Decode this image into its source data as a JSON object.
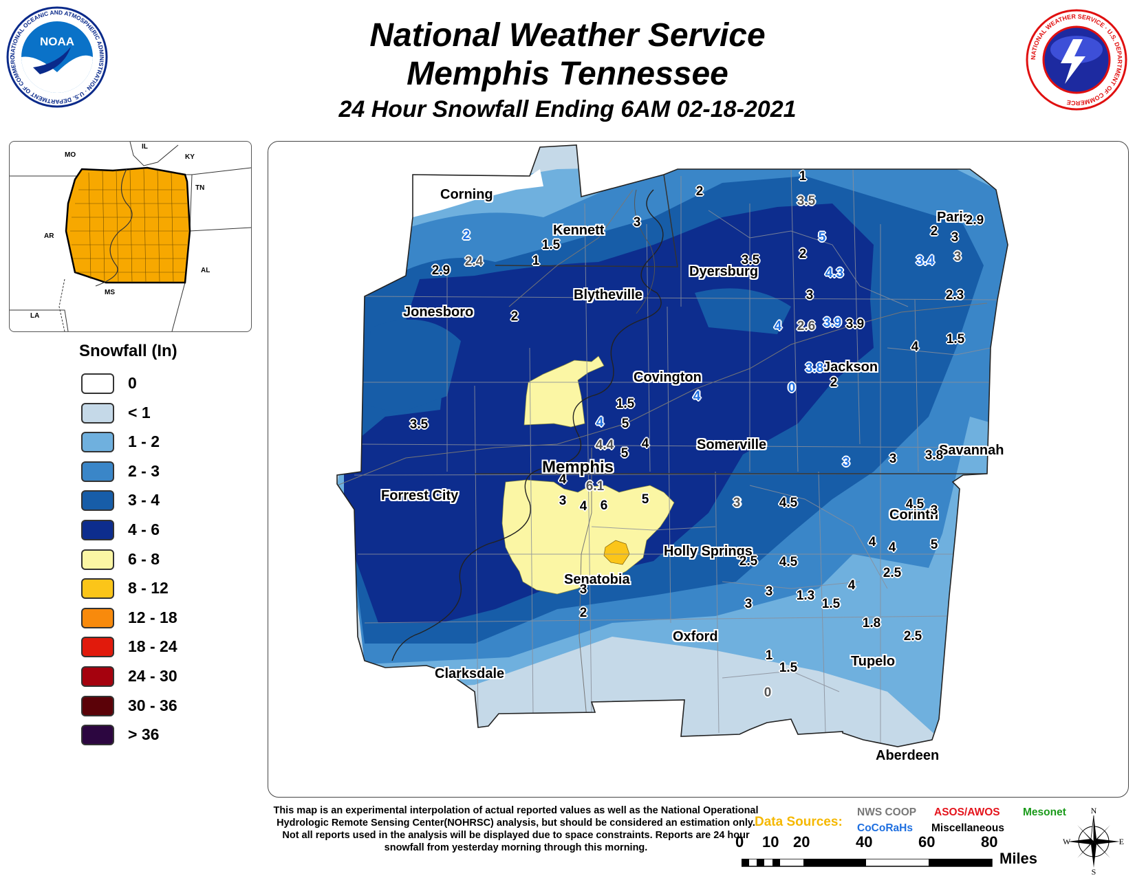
{
  "header": {
    "title_line1": "National Weather Service",
    "title_line2": "Memphis Tennessee",
    "subtitle": "24 Hour Snowfall Ending 6AM 02-18-2021"
  },
  "logos": {
    "noaa_text": "NOAA",
    "noaa_ring": "NATIONAL OCEANIC AND ATMOSPHERIC ADMINISTRATION · U.S. DEPARTMENT OF COMMERCE",
    "nws_ring": "NATIONAL WEATHER SERVICE · U.S. DEPARTMENT OF COMMERCE"
  },
  "inset": {
    "state_labels": [
      "MO",
      "IL",
      "KY",
      "TN",
      "AR",
      "AL",
      "MS",
      "LA"
    ],
    "fill_color": "#f7a800"
  },
  "legend": {
    "title": "Snowfall (In)",
    "items": [
      {
        "label": "0",
        "color": "#ffffff"
      },
      {
        "label": "< 1",
        "color": "#c5d9e8"
      },
      {
        "label": "1 - 2",
        "color": "#6fb0de"
      },
      {
        "label": "2 - 3",
        "color": "#3a86c8"
      },
      {
        "label": "3 - 4",
        "color": "#175da8"
      },
      {
        "label": "4 - 6",
        "color": "#0d2d8e"
      },
      {
        "label": "6 - 8",
        "color": "#fbf6a4"
      },
      {
        "label": "8 - 12",
        "color": "#fbc519"
      },
      {
        "label": "12 - 18",
        "color": "#f88a0c"
      },
      {
        "label": "18 - 24",
        "color": "#e11a0c"
      },
      {
        "label": "24 - 30",
        "color": "#a5020e"
      },
      {
        "label": "30 - 36",
        "color": "#5b0208"
      },
      {
        "label": "> 36",
        "color": "#2c0640"
      }
    ]
  },
  "map": {
    "cities": [
      {
        "name": "Corning"
      },
      {
        "name": "Kennett"
      },
      {
        "name": "Paris"
      },
      {
        "name": "Dyersburg"
      },
      {
        "name": "Blytheville"
      },
      {
        "name": "Jonesboro"
      },
      {
        "name": "Covington"
      },
      {
        "name": "Jackson"
      },
      {
        "name": "Somerville"
      },
      {
        "name": "Savannah"
      },
      {
        "name": "Memphis"
      },
      {
        "name": "Forrest City"
      },
      {
        "name": "Corinth"
      },
      {
        "name": "Holly Springs"
      },
      {
        "name": "Senatobia"
      },
      {
        "name": "Oxford"
      },
      {
        "name": "Tupelo"
      },
      {
        "name": "Clarksdale"
      },
      {
        "name": "Aberdeen"
      }
    ],
    "values": [
      {
        "v": "2",
        "t": "cocorahs"
      },
      {
        "v": "1.5",
        "t": "coop"
      },
      {
        "v": "1",
        "t": "coop"
      },
      {
        "v": "2.9",
        "t": "coop"
      },
      {
        "v": "2.4",
        "t": "misc"
      },
      {
        "v": "3",
        "t": "coop"
      },
      {
        "v": "2",
        "t": "coop"
      },
      {
        "v": "1",
        "t": "coop"
      },
      {
        "v": "3.5",
        "t": "misc"
      },
      {
        "v": "3.5",
        "t": "coop"
      },
      {
        "v": "5",
        "t": "cocorahs"
      },
      {
        "v": "2",
        "t": "coop"
      },
      {
        "v": "4.3",
        "t": "cocorahs"
      },
      {
        "v": "3",
        "t": "coop"
      },
      {
        "v": "2",
        "t": "coop"
      },
      {
        "v": "3",
        "t": "coop"
      },
      {
        "v": "2.9",
        "t": "coop"
      },
      {
        "v": "3.4",
        "t": "cocorahs"
      },
      {
        "v": "3",
        "t": "misc"
      },
      {
        "v": "2.3",
        "t": "coop"
      },
      {
        "v": "2",
        "t": "coop"
      },
      {
        "v": "4",
        "t": "cocorahs"
      },
      {
        "v": "2.6",
        "t": "misc"
      },
      {
        "v": "3.9",
        "t": "cocorahs"
      },
      {
        "v": "3.9",
        "t": "coop"
      },
      {
        "v": "4",
        "t": "coop"
      },
      {
        "v": "1.5",
        "t": "coop"
      },
      {
        "v": "3.8",
        "t": "cocorahs"
      },
      {
        "v": "0",
        "t": "cocorahs"
      },
      {
        "v": "2",
        "t": "coop"
      },
      {
        "v": "1.5",
        "t": "coop"
      },
      {
        "v": "4",
        "t": "cocorahs"
      },
      {
        "v": "5",
        "t": "coop"
      },
      {
        "v": "4",
        "t": "cocorahs"
      },
      {
        "v": "3.5",
        "t": "coop"
      },
      {
        "v": "4.4",
        "t": "misc"
      },
      {
        "v": "5",
        "t": "coop"
      },
      {
        "v": "4",
        "t": "coop"
      },
      {
        "v": "3",
        "t": "coop"
      },
      {
        "v": "3",
        "t": "cocorahs"
      },
      {
        "v": "3",
        "t": "coop"
      },
      {
        "v": "3.8",
        "t": "coop"
      },
      {
        "v": "4",
        "t": "coop"
      },
      {
        "v": "6.1",
        "t": "misc"
      },
      {
        "v": "3",
        "t": "coop"
      },
      {
        "v": "4",
        "t": "coop"
      },
      {
        "v": "6",
        "t": "coop"
      },
      {
        "v": "5",
        "t": "coop"
      },
      {
        "v": "3",
        "t": "misc"
      },
      {
        "v": "4.5",
        "t": "coop"
      },
      {
        "v": "4.5",
        "t": "coop"
      },
      {
        "v": "3",
        "t": "coop"
      },
      {
        "v": "4",
        "t": "coop"
      },
      {
        "v": "4",
        "t": "coop"
      },
      {
        "v": "5",
        "t": "coop"
      },
      {
        "v": "2.5",
        "t": "coop"
      },
      {
        "v": "4.5",
        "t": "coop"
      },
      {
        "v": "2.5",
        "t": "coop"
      },
      {
        "v": "3",
        "t": "coop"
      },
      {
        "v": "1.3",
        "t": "coop"
      },
      {
        "v": "4",
        "t": "coop"
      },
      {
        "v": "3",
        "t": "coop"
      },
      {
        "v": "1.5",
        "t": "coop"
      },
      {
        "v": "3",
        "t": "coop"
      },
      {
        "v": "2",
        "t": "coop"
      },
      {
        "v": "1.8",
        "t": "coop"
      },
      {
        "v": "2.5",
        "t": "coop"
      },
      {
        "v": "1",
        "t": "coop"
      },
      {
        "v": "1.5",
        "t": "coop"
      },
      {
        "v": "0",
        "t": "misc"
      }
    ]
  },
  "footer": {
    "disclaimer": "This map is an experimental interpolation of actual reported values as well as the National Operational Hydrologic Remote Sensing Center(NOHRSC) analysis, but should be considered an estimation only. Not all reports used in the analysis will be displayed due to space constraints. Reports are 24 hour snowfall from yesterday morning through this morning.",
    "data_sources_label": "Data Sources:",
    "sources": [
      {
        "label": "NWS COOP",
        "color": "#777777"
      },
      {
        "label": "ASOS/AWOS",
        "color": "#e4141c"
      },
      {
        "label": "Mesonet",
        "color": "#1a9a1a"
      },
      {
        "label": "CoCoRaHs",
        "color": "#1e6fe0"
      },
      {
        "label": "Miscellaneous",
        "color": "#000000"
      }
    ],
    "scale_labels": [
      "0",
      "10",
      "20",
      "40",
      "60",
      "80"
    ],
    "scale_unit": "Miles",
    "compass": [
      "N",
      "S",
      "E",
      "W"
    ]
  }
}
